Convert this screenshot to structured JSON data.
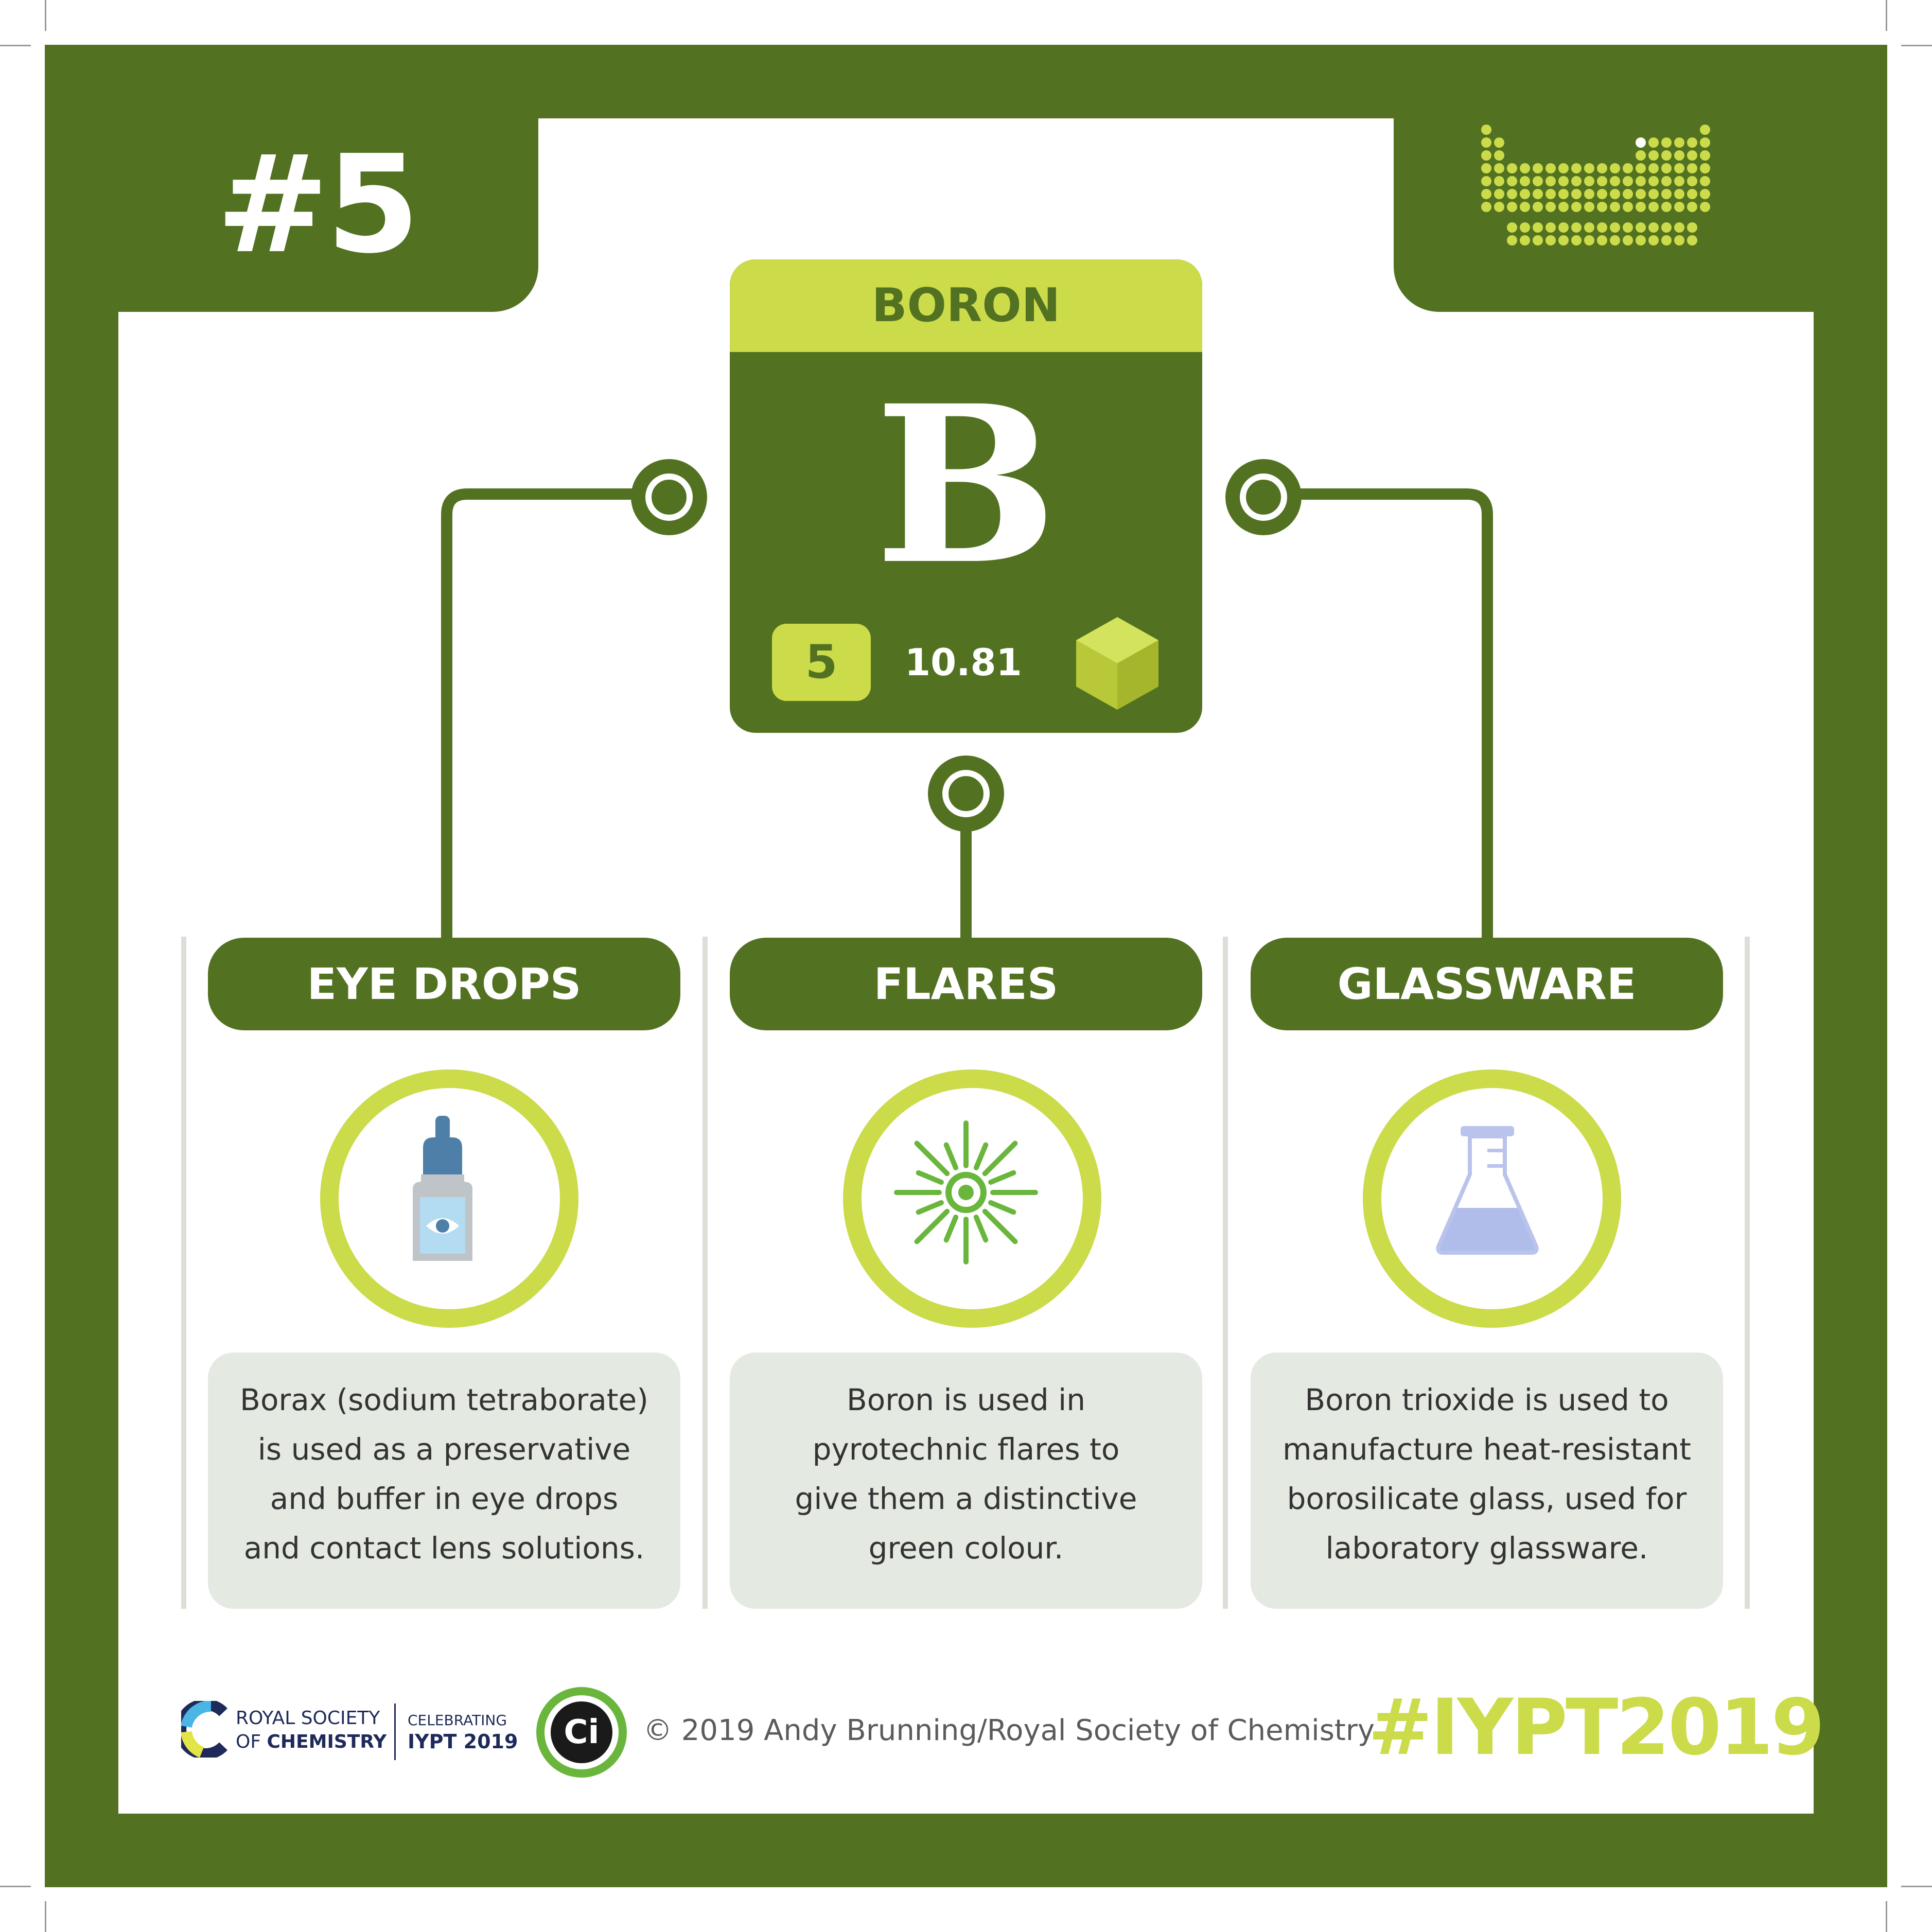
{
  "badge_number": "#5",
  "element": {
    "name": "BORON",
    "symbol": "B",
    "atomic_number": "5",
    "atomic_mass": "10.81"
  },
  "uses": [
    {
      "title": "EYE DROPS",
      "icon": "eye-drop-bottle-icon",
      "lines": [
        "Borax (sodium tetraborate)",
        "is used as a preservative",
        "and buffer in eye drops",
        "and contact lens solutions."
      ]
    },
    {
      "title": "FLARES",
      "icon": "flare-burst-icon",
      "lines": [
        "Boron is used in",
        "pyrotechnic flares to",
        "give them a distinctive",
        "green colour."
      ]
    },
    {
      "title": "GLASSWARE",
      "icon": "conical-flask-icon",
      "lines": [
        "Boron trioxide is used to",
        "manufacture heat-resistant",
        "borosilicate glass, used for",
        "laboratory glassware."
      ]
    }
  ],
  "footer": {
    "org_line1": "ROYAL SOCIETY",
    "org_line2_prefix": "OF ",
    "org_line2_bold": "CHEMISTRY",
    "celebrating": "CELEBRATING",
    "iypt": "IYPT 2019",
    "ci_logo": "Ci",
    "copyright": "© 2019 Andy Brunning/Royal Society of Chemistry",
    "hashtag": "#IYPT2019"
  },
  "colors": {
    "dark_green": "#527222",
    "lime": "#cbdb4a",
    "panel_grey": "#e4e9e1"
  }
}
